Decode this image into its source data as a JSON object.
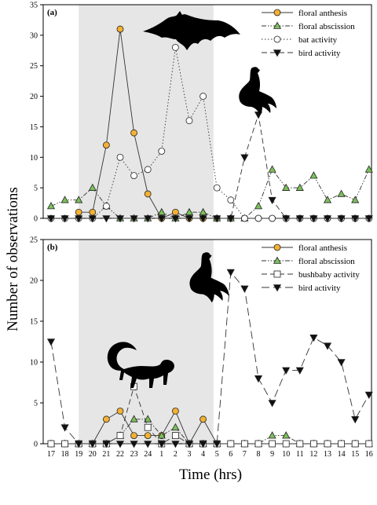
{
  "figure": {
    "ylabel": "Number of observations",
    "xlabel": "Time (hrs)",
    "x_ticks": [
      "17",
      "18",
      "19",
      "20",
      "21",
      "22",
      "23",
      "24",
      "1",
      "2",
      "3",
      "4",
      "5",
      "6",
      "7",
      "8",
      "9",
      "10",
      "11",
      "12",
      "13",
      "14",
      "15",
      "16"
    ],
    "shaded_period": {
      "from": "19",
      "to": "4.75"
    }
  },
  "chart_data": [
    {
      "type": "line",
      "panel_label": "(a)",
      "ylim": [
        0,
        35
      ],
      "y_ticks": [
        0,
        5,
        10,
        15,
        20,
        25,
        30,
        35
      ],
      "legend_position": "top-right",
      "series": [
        {
          "name": "floral anthesis",
          "marker": "circle",
          "color": "#F2B134",
          "line": "solid",
          "points": [
            [
              19,
              1
            ],
            [
              20,
              1
            ],
            [
              21,
              12
            ],
            [
              22,
              31
            ],
            [
              23,
              14
            ],
            [
              24,
              4
            ],
            [
              1,
              0
            ],
            [
              2,
              1
            ],
            [
              3,
              0
            ],
            [
              4,
              0
            ],
            [
              5,
              0
            ],
            [
              6,
              0
            ],
            [
              7,
              0
            ],
            [
              8,
              0
            ],
            [
              9,
              0
            ],
            [
              10,
              0
            ],
            [
              11,
              0
            ],
            [
              12,
              0
            ],
            [
              13,
              0
            ],
            [
              14,
              0
            ],
            [
              15,
              0
            ],
            [
              16,
              0
            ]
          ]
        },
        {
          "name": "floral abscission",
          "marker": "triangle-up",
          "color": "#7CC15A",
          "line": "dashdotdot",
          "points": [
            [
              17,
              2
            ],
            [
              18,
              3
            ],
            [
              19,
              3
            ],
            [
              20,
              5
            ],
            [
              21,
              2
            ],
            [
              22,
              0
            ],
            [
              23,
              0
            ],
            [
              24,
              0
            ],
            [
              1,
              1
            ],
            [
              2,
              0
            ],
            [
              3,
              1
            ],
            [
              4,
              1
            ],
            [
              5,
              0
            ],
            [
              6,
              0
            ],
            [
              7,
              0
            ],
            [
              8,
              2
            ],
            [
              9,
              8
            ],
            [
              10,
              5
            ],
            [
              11,
              5
            ],
            [
              12,
              7
            ],
            [
              13,
              3
            ],
            [
              14,
              4
            ],
            [
              15,
              3
            ],
            [
              16,
              8
            ]
          ]
        },
        {
          "name": "bat activity",
          "marker": "circle-open",
          "color": "#ffffff",
          "line": "dotted",
          "points": [
            [
              17,
              0
            ],
            [
              18,
              0
            ],
            [
              19,
              0
            ],
            [
              20,
              0
            ],
            [
              21,
              2
            ],
            [
              22,
              10
            ],
            [
              23,
              7
            ],
            [
              24,
              8
            ],
            [
              1,
              11
            ],
            [
              2,
              28
            ],
            [
              3,
              16
            ],
            [
              4,
              20
            ],
            [
              5,
              5
            ],
            [
              6,
              3
            ],
            [
              7,
              0
            ],
            [
              8,
              0
            ],
            [
              9,
              0
            ],
            [
              10,
              0
            ],
            [
              11,
              0
            ],
            [
              12,
              0
            ],
            [
              13,
              0
            ],
            [
              14,
              0
            ],
            [
              15,
              0
            ],
            [
              16,
              0
            ]
          ]
        },
        {
          "name": "bird activity",
          "marker": "triangle-down",
          "color": "#111111",
          "line": "dashed",
          "points": [
            [
              17,
              0
            ],
            [
              18,
              0
            ],
            [
              19,
              0
            ],
            [
              20,
              0
            ],
            [
              21,
              0
            ],
            [
              22,
              0
            ],
            [
              23,
              0
            ],
            [
              24,
              0
            ],
            [
              1,
              0
            ],
            [
              2,
              0
            ],
            [
              3,
              0
            ],
            [
              4,
              0
            ],
            [
              5,
              0
            ],
            [
              6,
              0
            ],
            [
              7,
              10
            ],
            [
              8,
              17
            ],
            [
              9,
              3
            ],
            [
              10,
              0
            ],
            [
              11,
              0
            ],
            [
              12,
              0
            ],
            [
              13,
              0
            ],
            [
              14,
              0
            ],
            [
              15,
              0
            ],
            [
              16,
              0
            ]
          ]
        }
      ]
    },
    {
      "type": "line",
      "panel_label": "(b)",
      "ylim": [
        0,
        25
      ],
      "y_ticks": [
        0,
        5,
        10,
        15,
        20,
        25
      ],
      "legend_position": "top-right",
      "series": [
        {
          "name": "floral anthesis",
          "marker": "circle",
          "color": "#F2B134",
          "line": "solid",
          "points": [
            [
              17,
              0
            ],
            [
              18,
              0
            ],
            [
              19,
              0
            ],
            [
              20,
              0
            ],
            [
              21,
              3
            ],
            [
              22,
              4
            ],
            [
              23,
              1
            ],
            [
              24,
              1
            ],
            [
              1,
              1
            ],
            [
              2,
              4
            ],
            [
              3,
              0
            ],
            [
              4,
              3
            ],
            [
              5,
              0
            ],
            [
              6,
              0
            ],
            [
              7,
              0
            ],
            [
              8,
              0
            ],
            [
              9,
              0
            ],
            [
              10,
              0
            ],
            [
              11,
              0
            ],
            [
              12,
              0
            ],
            [
              13,
              0
            ],
            [
              14,
              0
            ],
            [
              15,
              0
            ],
            [
              16,
              0
            ]
          ]
        },
        {
          "name": "floral abscission",
          "marker": "triangle-up",
          "color": "#7CC15A",
          "line": "dashdotdot",
          "points": [
            [
              17,
              0
            ],
            [
              18,
              0
            ],
            [
              19,
              0
            ],
            [
              20,
              0
            ],
            [
              21,
              0
            ],
            [
              22,
              1
            ],
            [
              23,
              3
            ],
            [
              24,
              3
            ],
            [
              1,
              1
            ],
            [
              2,
              2
            ],
            [
              3,
              0
            ],
            [
              4,
              0
            ],
            [
              5,
              0
            ],
            [
              6,
              0
            ],
            [
              7,
              0
            ],
            [
              8,
              0
            ],
            [
              9,
              1
            ],
            [
              10,
              1
            ],
            [
              11,
              0
            ],
            [
              12,
              0
            ],
            [
              13,
              0
            ],
            [
              14,
              0
            ],
            [
              15,
              0
            ],
            [
              16,
              0
            ]
          ]
        },
        {
          "name": "bushbaby activity",
          "marker": "square-open",
          "color": "#ffffff",
          "line": "dashed",
          "points": [
            [
              17,
              0
            ],
            [
              18,
              0
            ],
            [
              19,
              0
            ],
            [
              20,
              0
            ],
            [
              21,
              0
            ],
            [
              22,
              1
            ],
            [
              23,
              7
            ],
            [
              24,
              2
            ],
            [
              1,
              0
            ],
            [
              2,
              1
            ],
            [
              3,
              0
            ],
            [
              4,
              0
            ],
            [
              5,
              0
            ],
            [
              6,
              0
            ],
            [
              7,
              0
            ],
            [
              8,
              0
            ],
            [
              9,
              0
            ],
            [
              10,
              0
            ],
            [
              11,
              0
            ],
            [
              12,
              0
            ],
            [
              13,
              0
            ],
            [
              14,
              0
            ],
            [
              15,
              0
            ],
            [
              16,
              0
            ]
          ]
        },
        {
          "name": "bird activity",
          "marker": "triangle-down",
          "color": "#111111",
          "line": "longdash",
          "points": [
            [
              17,
              12.5
            ],
            [
              18,
              2
            ],
            [
              19,
              0
            ],
            [
              20,
              0
            ],
            [
              21,
              0
            ],
            [
              22,
              0
            ],
            [
              23,
              0
            ],
            [
              24,
              0
            ],
            [
              1,
              0
            ],
            [
              2,
              0
            ],
            [
              3,
              0
            ],
            [
              4,
              0
            ],
            [
              5,
              0
            ],
            [
              6,
              21
            ],
            [
              7,
              19
            ],
            [
              8,
              8
            ],
            [
              9,
              5
            ],
            [
              10,
              9
            ],
            [
              11,
              9
            ],
            [
              12,
              13
            ],
            [
              13,
              12
            ],
            [
              14,
              10
            ],
            [
              15,
              3
            ],
            [
              16,
              6
            ]
          ]
        }
      ]
    }
  ]
}
